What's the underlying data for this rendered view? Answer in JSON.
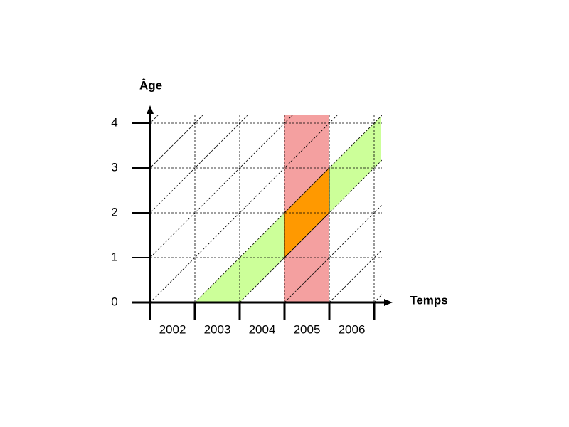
{
  "y_axis": {
    "label": "Âge",
    "ticks": [
      "0",
      "1",
      "2",
      "3",
      "4"
    ]
  },
  "x_axis": {
    "label": "Temps",
    "categories": [
      "2002",
      "2003",
      "2004",
      "2005",
      "2006"
    ]
  }
}
